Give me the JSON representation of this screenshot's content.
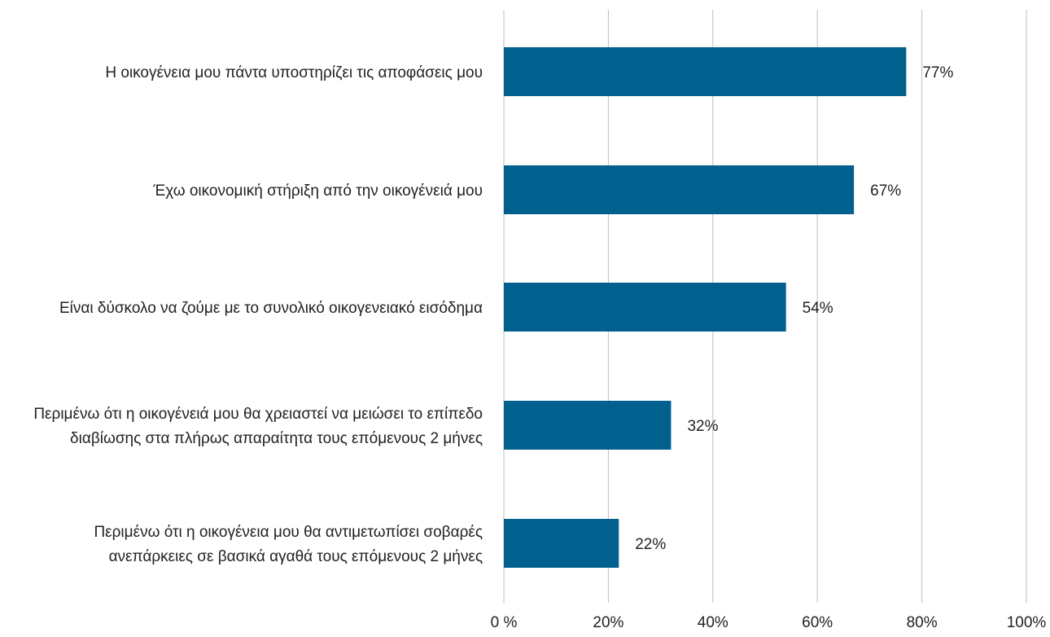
{
  "chart_data": {
    "type": "bar",
    "orientation": "horizontal",
    "title": "",
    "xlabel": "",
    "ylabel": "",
    "xlim": [
      0,
      100
    ],
    "grid": true,
    "legend": "none",
    "bar_color": "#02608F",
    "grid_color": "#BDBDBD",
    "text_color": "#222222",
    "categories": [
      [
        "Η οικογένεια μου πάντα υποστηρίζει τις αποφάσεις μου"
      ],
      [
        "Έχω οικονομική στήριξη από την οικογένειά μου"
      ],
      [
        "Είναι δύσκολο να ζούμε με το συνολικό οικογενειακό εισόδημα"
      ],
      [
        "Περιμένω ότι η οικογένειά μου θα χρειαστεί να μειώσει το επίπεδο",
        "διαβίωσης στα πλήρως απαραίτητα τους επόμενους 2 μήνες"
      ],
      [
        "Περιμένω ότι η οικογένεια μου θα αντιμετωπίσει σοβαρές",
        "ανεπάρκειες σε βασικά αγαθά τους επόμενους 2 μήνες"
      ]
    ],
    "values": [
      77,
      67,
      54,
      32,
      22
    ],
    "data_labels": [
      "77%",
      "67%",
      "54%",
      "32%",
      "22%"
    ],
    "x_ticks": [
      0,
      20,
      40,
      60,
      80,
      100
    ],
    "x_tick_labels": [
      "0 %",
      "20%",
      "40%",
      "60%",
      "80%",
      "100%"
    ]
  }
}
